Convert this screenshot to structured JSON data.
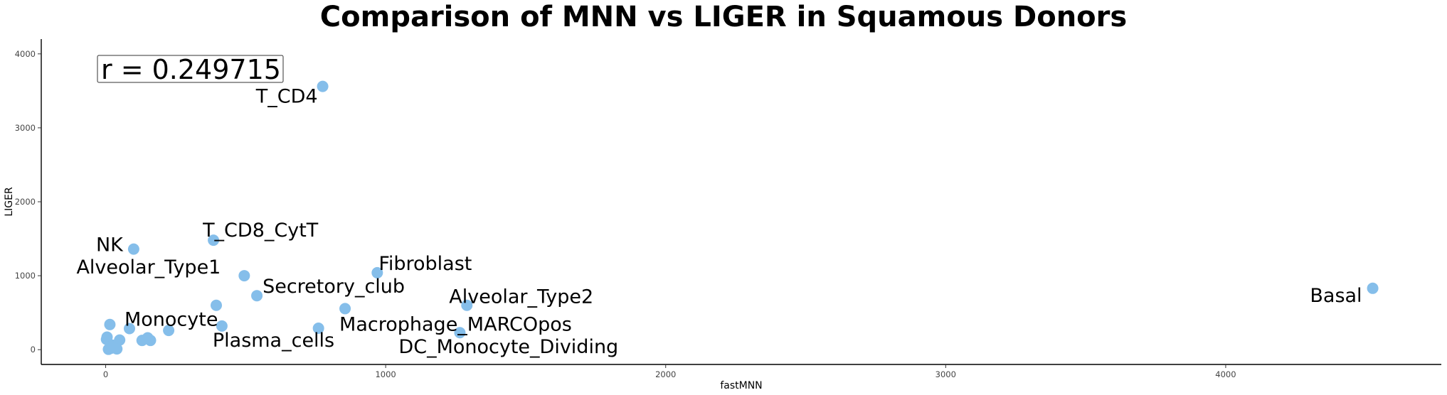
{
  "chart_data": {
    "type": "scatter",
    "title": "Comparison of MNN vs LIGER in Squamous Donors",
    "xlabel": "fastMNN",
    "ylabel": "LIGER",
    "xlim": [
      -230,
      4770
    ],
    "ylim": [
      -200,
      4200
    ],
    "xticks": [
      0,
      1000,
      2000,
      3000,
      4000
    ],
    "yticks": [
      0,
      1000,
      2000,
      3000,
      4000
    ],
    "grid": false,
    "point_color": "#85BEEA",
    "annotation": "r = 0.249715",
    "points": [
      {
        "label": "T_CD4",
        "x": 775,
        "y": 3560
      },
      {
        "label": "NK",
        "x": 100,
        "y": 1360
      },
      {
        "label": "T_CD8_CytT",
        "x": 385,
        "y": 1480
      },
      {
        "label": "Alveolar_Type1",
        "x": 495,
        "y": 1000
      },
      {
        "label": "Fibroblast",
        "x": 970,
        "y": 1040
      },
      {
        "label": "Secretory_club",
        "x": 540,
        "y": 730
      },
      {
        "label": "Alveolar_Type2",
        "x": 1290,
        "y": 600
      },
      {
        "label": "Basal",
        "x": 4525,
        "y": 830
      },
      {
        "label": "Macrophage_MARCOpos",
        "x": 855,
        "y": 555
      },
      {
        "label": "Monocyte",
        "x": 85,
        "y": 285
      },
      {
        "label": "Plasma_cells",
        "x": 415,
        "y": 320
      },
      {
        "label": "DC_Monocyte_Dividing",
        "x": 1265,
        "y": 230
      },
      {
        "label": "",
        "x": 395,
        "y": 600
      },
      {
        "label": "",
        "x": 760,
        "y": 290
      },
      {
        "label": "",
        "x": 225,
        "y": 260
      },
      {
        "label": "",
        "x": 15,
        "y": 340
      },
      {
        "label": "",
        "x": 5,
        "y": 170
      },
      {
        "label": "",
        "x": 3,
        "y": 140
      },
      {
        "label": "",
        "x": 50,
        "y": 130
      },
      {
        "label": "",
        "x": 130,
        "y": 125
      },
      {
        "label": "",
        "x": 150,
        "y": 160
      },
      {
        "label": "",
        "x": 160,
        "y": 125
      },
      {
        "label": "",
        "x": 10,
        "y": 5
      },
      {
        "label": "",
        "x": 25,
        "y": 60
      },
      {
        "label": "",
        "x": 40,
        "y": 10
      },
      {
        "label": "",
        "x": 20,
        "y": 20
      }
    ]
  }
}
